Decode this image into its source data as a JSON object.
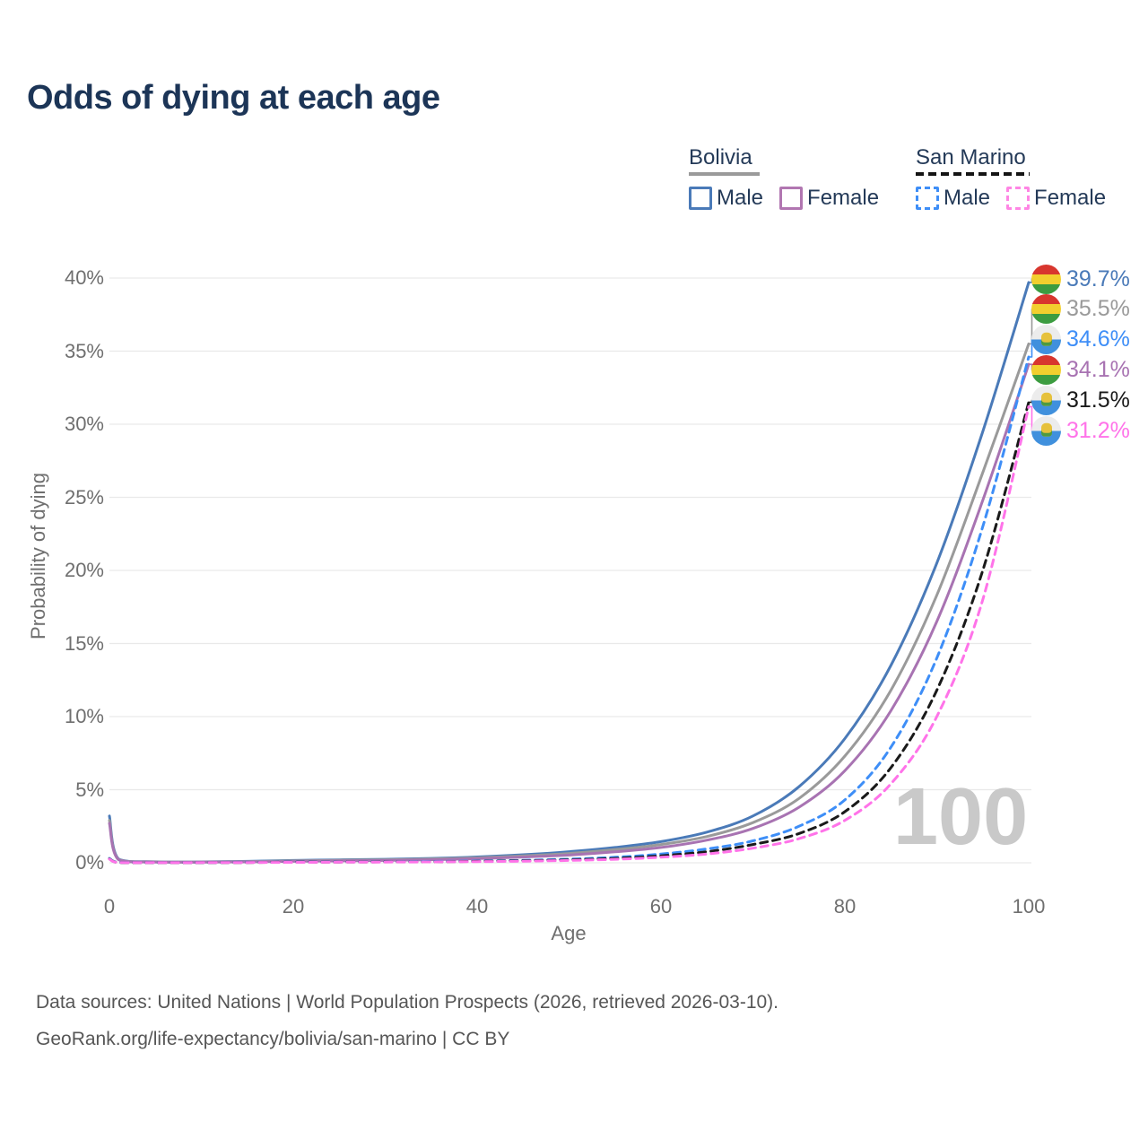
{
  "title": "Odds of dying at each age",
  "watermark": "100",
  "legend": {
    "groups": [
      {
        "label": "Bolivia",
        "line_style": "solid",
        "underline_color": "#9a9a9a",
        "items": [
          {
            "label": "Male",
            "color": "#4a7ab8"
          },
          {
            "label": "Female",
            "color": "#b176b1"
          }
        ]
      },
      {
        "label": "San Marino",
        "line_style": "dashed",
        "underline_color": "#141414",
        "items": [
          {
            "label": "Male",
            "color": "#3e8ef7"
          },
          {
            "label": "Female",
            "color": "#ff85e4"
          }
        ]
      }
    ]
  },
  "chart_data": {
    "type": "line",
    "title": "Odds of dying at each age",
    "xlabel": "Age",
    "ylabel": "Probability of dying",
    "xlim": [
      0,
      100
    ],
    "ylim": [
      0,
      40
    ],
    "grid": true,
    "x_ticks": [
      {
        "v": 0,
        "label": "0"
      },
      {
        "v": 20,
        "label": "20"
      },
      {
        "v": 40,
        "label": "40"
      },
      {
        "v": 60,
        "label": "60"
      },
      {
        "v": 80,
        "label": "80"
      },
      {
        "v": 100,
        "label": "100"
      }
    ],
    "y_ticks": [
      {
        "v": 0,
        "label": "0%"
      },
      {
        "v": 5,
        "label": "5%"
      },
      {
        "v": 10,
        "label": "10%"
      },
      {
        "v": 15,
        "label": "15%"
      },
      {
        "v": 20,
        "label": "20%"
      },
      {
        "v": 25,
        "label": "25%"
      },
      {
        "v": 30,
        "label": "30%"
      },
      {
        "v": 35,
        "label": "35%"
      },
      {
        "v": 40,
        "label": "40%"
      }
    ],
    "x": [
      0,
      1,
      5,
      10,
      15,
      20,
      25,
      30,
      35,
      40,
      45,
      50,
      55,
      60,
      65,
      70,
      75,
      80,
      85,
      90,
      95,
      100
    ],
    "series": [
      {
        "name": "Bolivia — Male",
        "country": "Bolivia",
        "flag": "bolivia-flag-icon",
        "color": "#4a7ab8",
        "dash": false,
        "end_label": "39.7%",
        "end_value": 39.7,
        "values": [
          3.2,
          0.25,
          0.07,
          0.06,
          0.1,
          0.16,
          0.2,
          0.24,
          0.3,
          0.4,
          0.55,
          0.76,
          1.05,
          1.45,
          2.1,
          3.2,
          5.2,
          8.5,
          13.5,
          20.5,
          29.5,
          39.7
        ]
      },
      {
        "name": "Bolivia — Both sexes",
        "country": "Bolivia",
        "flag": "bolivia-flag-icon",
        "color": "#9a9a9a",
        "dash": false,
        "end_label": "35.5%",
        "end_value": 35.5,
        "values": [
          2.9,
          0.22,
          0.06,
          0.05,
          0.08,
          0.13,
          0.17,
          0.2,
          0.26,
          0.34,
          0.47,
          0.64,
          0.9,
          1.25,
          1.8,
          2.75,
          4.4,
          7.3,
          11.8,
          18.3,
          26.7,
          35.5
        ]
      },
      {
        "name": "Bolivia — Female",
        "country": "Bolivia",
        "flag": "bolivia-flag-icon",
        "color": "#a873b2",
        "dash": false,
        "end_label": "34.1%",
        "end_value": 34.1,
        "values": [
          2.7,
          0.2,
          0.05,
          0.04,
          0.06,
          0.1,
          0.13,
          0.16,
          0.21,
          0.28,
          0.39,
          0.53,
          0.75,
          1.05,
          1.55,
          2.35,
          3.8,
          6.3,
          10.4,
          16.5,
          24.8,
          34.1
        ]
      },
      {
        "name": "San Marino — Male",
        "country": "San Marino",
        "flag": "san-marino-flag-icon",
        "color": "#3e8ef7",
        "dash": true,
        "end_label": "34.6%",
        "end_value": 34.6,
        "values": [
          0.3,
          0.03,
          0.01,
          0.01,
          0.03,
          0.05,
          0.06,
          0.07,
          0.09,
          0.12,
          0.17,
          0.25,
          0.38,
          0.6,
          0.95,
          1.5,
          2.5,
          4.3,
          7.9,
          14.0,
          23.0,
          34.6
        ]
      },
      {
        "name": "San Marino — Both sexes",
        "country": "San Marino",
        "flag": "san-marino-flag-icon",
        "color": "#1a1a1a",
        "dash": true,
        "end_label": "31.5%",
        "end_value": 31.5,
        "values": [
          0.27,
          0.02,
          0.01,
          0.01,
          0.02,
          0.04,
          0.05,
          0.06,
          0.07,
          0.1,
          0.14,
          0.2,
          0.3,
          0.48,
          0.76,
          1.25,
          2.0,
          3.5,
          6.5,
          11.8,
          20.0,
          31.5
        ]
      },
      {
        "name": "San Marino — Female",
        "country": "San Marino",
        "flag": "san-marino-flag-icon",
        "color": "#ff73e9",
        "dash": true,
        "end_label": "31.2%",
        "end_value": 31.2,
        "values": [
          0.25,
          0.02,
          0.01,
          0.01,
          0.02,
          0.03,
          0.04,
          0.05,
          0.06,
          0.08,
          0.11,
          0.16,
          0.24,
          0.38,
          0.6,
          1.0,
          1.65,
          2.9,
          5.4,
          10.0,
          18.0,
          31.2
        ]
      }
    ],
    "grid_color": "#e9e9e9"
  },
  "footer": {
    "line1": "Data sources: United Nations | World Population Prospects (2026, retrieved 2026-03-10).",
    "line2": "GeoRank.org/life-expectancy/bolivia/san-marino | CC BY"
  }
}
